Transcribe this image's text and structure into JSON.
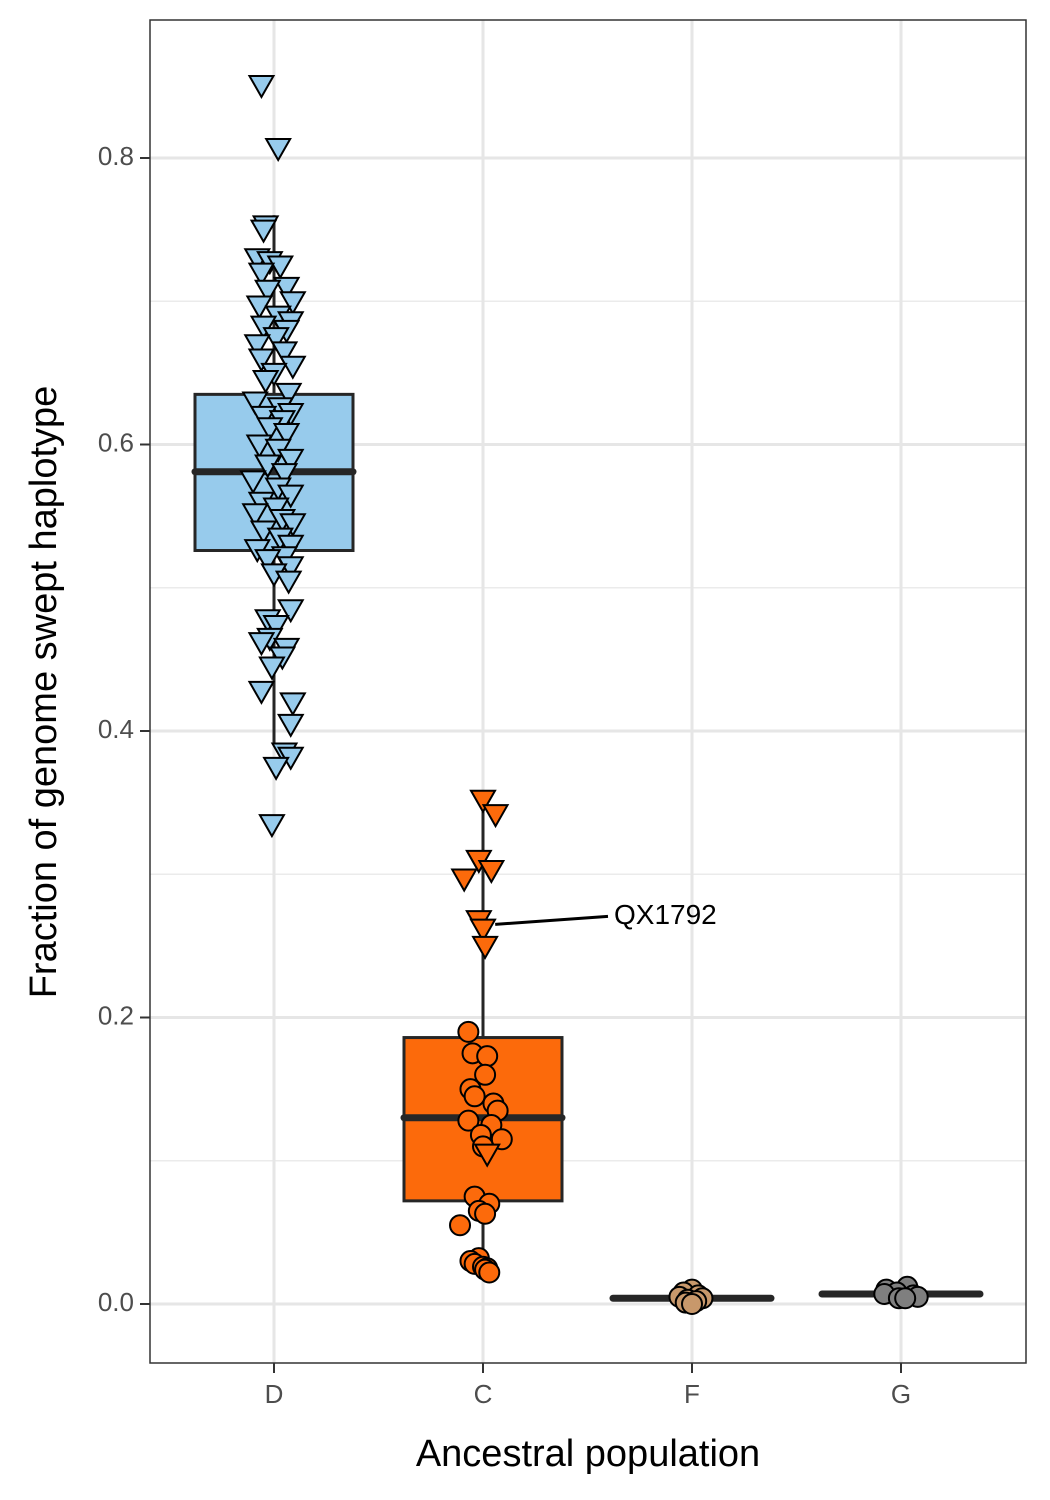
{
  "chart_data": {
    "type": "box",
    "title": "",
    "xlabel": "Ancestral population",
    "ylabel": "Fraction of genome swept haplotype",
    "ylim": [
      -0.04,
      0.89
    ],
    "y_ticks": [
      "0.0",
      "0.2",
      "0.4",
      "0.6",
      "0.8"
    ],
    "y_tick_values": [
      0.0,
      0.2,
      0.4,
      0.6,
      0.8
    ],
    "grid": true,
    "legend": "none",
    "categories": [
      "D",
      "C",
      "F",
      "G"
    ],
    "boxes": [
      {
        "name": "D",
        "color": "#97cbec",
        "q1": 0.526,
        "median": 0.581,
        "q3": 0.635,
        "whisker_low": 0.39,
        "whisker_high": 0.76
      },
      {
        "name": "C",
        "color": "#fc6a0b",
        "q1": 0.072,
        "median": 0.13,
        "q3": 0.186,
        "whisker_low": 0.024,
        "whisker_high": 0.35
      },
      {
        "name": "F",
        "color": "#c8986b",
        "q1": 0.003,
        "median": 0.004,
        "q3": 0.005,
        "whisker_low": 0.0,
        "whisker_high": 0.008
      },
      {
        "name": "G",
        "color": "#7f7f7f",
        "q1": 0.006,
        "median": 0.007,
        "q3": 0.008,
        "whisker_low": 0.004,
        "whisker_high": 0.012
      }
    ],
    "points": {
      "D": {
        "shape": "triangle-down",
        "values": [
          0.851,
          0.807,
          0.753,
          0.75,
          0.73,
          0.728,
          0.725,
          0.72,
          0.71,
          0.708,
          0.7,
          0.697,
          0.69,
          0.686,
          0.683,
          0.68,
          0.675,
          0.67,
          0.665,
          0.66,
          0.655,
          0.65,
          0.645,
          0.636,
          0.63,
          0.626,
          0.622,
          0.62,
          0.617,
          0.612,
          0.608,
          0.6,
          0.597,
          0.59,
          0.586,
          0.58,
          0.575,
          0.57,
          0.565,
          0.56,
          0.556,
          0.552,
          0.548,
          0.545,
          0.54,
          0.535,
          0.53,
          0.527,
          0.522,
          0.52,
          0.515,
          0.51,
          0.505,
          0.485,
          0.478,
          0.474,
          0.465,
          0.462,
          0.458,
          0.452,
          0.445,
          0.428,
          0.42,
          0.405,
          0.385,
          0.382,
          0.375,
          0.335
        ],
        "offsets": [
          -0.06,
          0.02,
          -0.04,
          -0.05,
          -0.08,
          -0.02,
          0.03,
          -0.06,
          0.06,
          -0.03,
          0.09,
          -0.07,
          0.02,
          0.08,
          -0.05,
          0.06,
          0.01,
          -0.08,
          0.05,
          -0.06,
          0.09,
          0.0,
          -0.04,
          0.07,
          -0.09,
          0.03,
          0.08,
          -0.05,
          0.04,
          -0.02,
          0.06,
          -0.07,
          0.02,
          0.08,
          -0.03,
          0.05,
          -0.1,
          0.02,
          0.08,
          -0.06,
          0.01,
          -0.09,
          0.04,
          0.09,
          -0.05,
          0.03,
          0.08,
          -0.08,
          0.05,
          -0.03,
          0.08,
          0.0,
          0.07,
          0.08,
          -0.03,
          0.01,
          -0.02,
          -0.06,
          0.06,
          0.04,
          -0.01,
          -0.06,
          0.09,
          0.08,
          0.05,
          0.08,
          0.01,
          -0.01
        ]
      },
      "C": {
        "shape": "mixed",
        "triangles": [
          0.352,
          0.342,
          0.31,
          0.303,
          0.297,
          0.268,
          0.262,
          0.25,
          0.105
        ],
        "triangle_offsets": [
          0.0,
          0.06,
          -0.02,
          0.04,
          -0.09,
          -0.02,
          0.0,
          0.01,
          0.02
        ],
        "circles": [
          0.19,
          0.175,
          0.173,
          0.16,
          0.15,
          0.145,
          0.14,
          0.135,
          0.128,
          0.125,
          0.118,
          0.115,
          0.11,
          0.075,
          0.07,
          0.065,
          0.063,
          0.055,
          0.032,
          0.03,
          0.028,
          0.026,
          0.025,
          0.024,
          0.022
        ],
        "circle_offsets": [
          -0.07,
          -0.05,
          0.02,
          0.01,
          -0.06,
          -0.04,
          0.05,
          0.07,
          -0.07,
          0.04,
          -0.01,
          0.09,
          0.0,
          -0.04,
          0.03,
          -0.02,
          0.01,
          -0.11,
          -0.02,
          -0.06,
          -0.04,
          0.0,
          0.02,
          0.01,
          0.03
        ]
      },
      "F": {
        "shape": "circle",
        "values": [
          0.01,
          0.008,
          0.006,
          0.005,
          0.004,
          0.003,
          0.002,
          0.001,
          0.0
        ],
        "offsets": [
          0.0,
          -0.04,
          0.03,
          -0.06,
          0.05,
          -0.02,
          0.02,
          -0.03,
          0.0
        ]
      },
      "G": {
        "shape": "circle",
        "values": [
          0.012,
          0.01,
          0.008,
          0.007,
          0.006,
          0.005,
          0.004,
          0.004
        ],
        "offsets": [
          0.03,
          -0.07,
          -0.02,
          -0.08,
          0.06,
          0.08,
          -0.01,
          0.02
        ]
      }
    },
    "annotation": {
      "label": "QX1792",
      "category": "C",
      "value": 0.265
    }
  }
}
